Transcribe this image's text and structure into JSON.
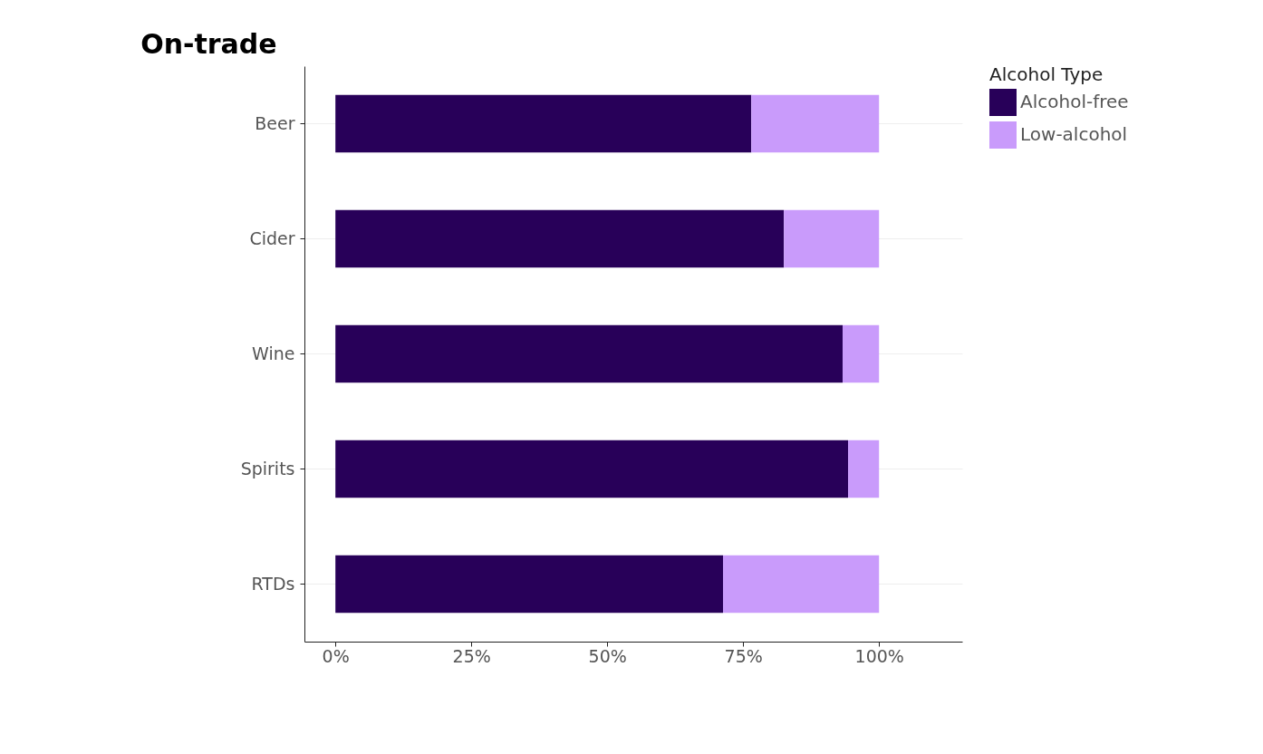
{
  "chart_data": {
    "type": "bar",
    "title": "On-trade",
    "orientation": "horizontal",
    "stacked": true,
    "categories": [
      "Beer",
      "Cider",
      "Wine",
      "Spirits",
      "RTDs"
    ],
    "series": [
      {
        "name": "Alcohol-free",
        "color": "#280059",
        "values": [
          76.5,
          82.5,
          93.3,
          94.3,
          71.3
        ]
      },
      {
        "name": "Low-alcohol",
        "color": "#c99bfb",
        "values": [
          23.5,
          17.5,
          6.7,
          5.7,
          28.7
        ]
      }
    ],
    "xlim": [
      -5.7,
      115.3
    ],
    "xticks": [
      {
        "value": 0,
        "label": "0%"
      },
      {
        "value": 25,
        "label": "25%"
      },
      {
        "value": 50,
        "label": "50%"
      },
      {
        "value": 75,
        "label": "75%"
      },
      {
        "value": 100,
        "label": "100%"
      }
    ],
    "legend_title": "Alcohol Type",
    "legend": "right",
    "grid": "y"
  }
}
